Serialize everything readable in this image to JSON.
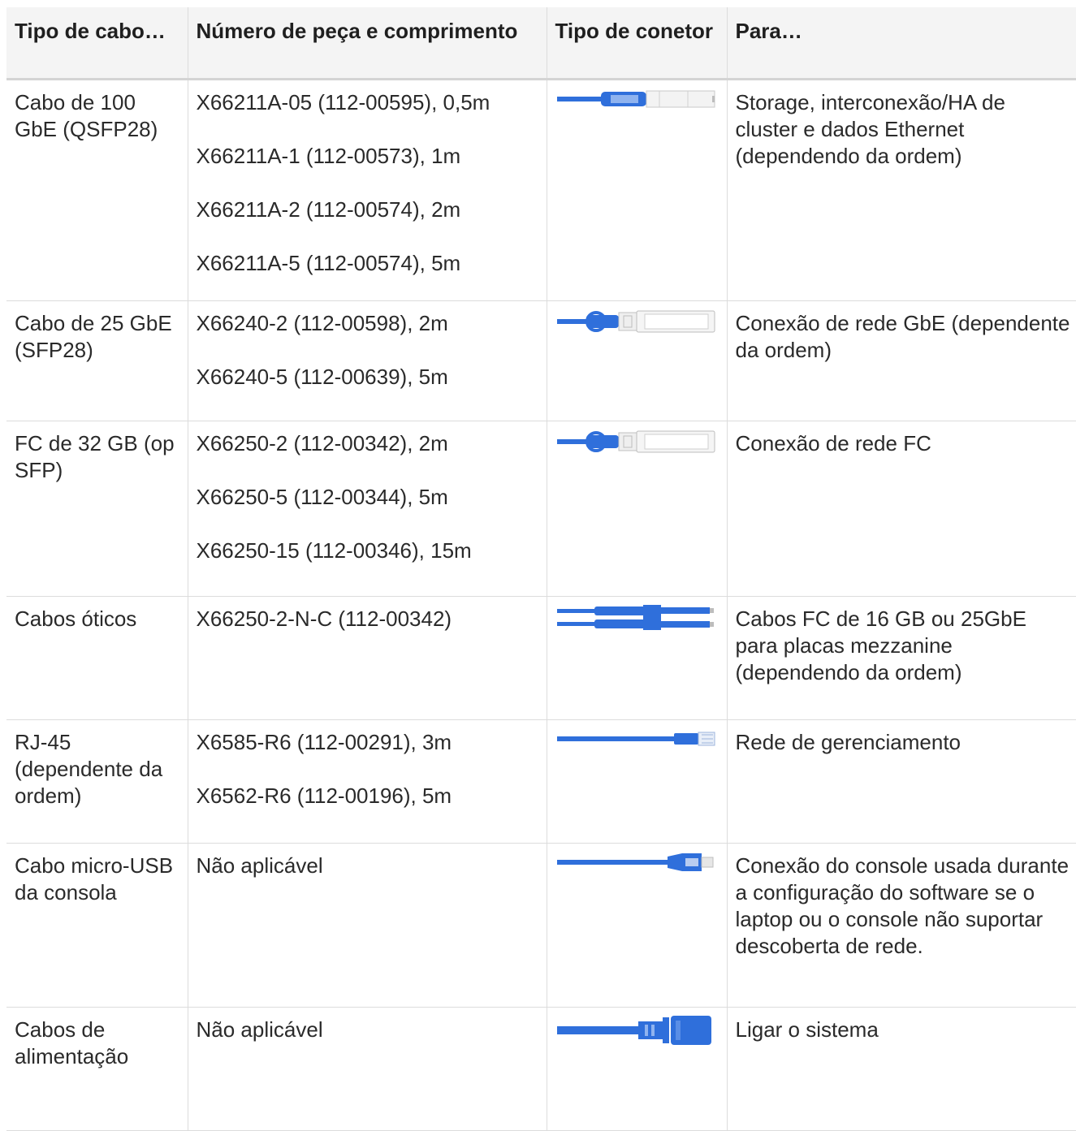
{
  "table": {
    "headers": [
      "Tipo de cabo…",
      "Número de peça e comprimento",
      "Tipo de conetor",
      "Para…"
    ],
    "rows": [
      {
        "type": "Cabo de 100 GbE (QSFP28)",
        "parts": [
          "X66211A-05 (112-00595), 0,5m",
          "X66211A-1 (112-00573), 1m",
          "X66211A-2 (112-00574), 2m",
          "X66211A-5 (112-00574), 5m"
        ],
        "connector_icon": "qsfp28-connector-icon",
        "purpose": "Storage, interconexão/HA de cluster e dados Ethernet (dependendo da ordem)"
      },
      {
        "type": "Cabo de 25 GbE (SFP28)",
        "parts": [
          "X66240-2 (112-00598), 2m",
          "X66240-5 (112-00639), 5m"
        ],
        "connector_icon": "sfp28-connector-icon",
        "purpose": "Conexão de rede GbE (dependente da ordem)"
      },
      {
        "type": "FC de 32 GB (op SFP)",
        "parts": [
          "X66250-2 (112-00342), 2m",
          "X66250-5 (112-00344), 5m",
          "X66250-15 (112-00346), 15m"
        ],
        "connector_icon": "sfp-fc-connector-icon",
        "purpose": "Conexão de rede FC"
      },
      {
        "type": "Cabos óticos",
        "parts": [
          "X66250-2-N-C (112-00342)"
        ],
        "connector_icon": "optical-lc-connector-icon",
        "purpose": "Cabos FC de 16 GB ou 25GbE para placas mezzanine (dependendo da ordem)"
      },
      {
        "type": "RJ-45 (dependente da ordem)",
        "parts": [
          "X6585-R6 (112-00291), 3m",
          "X6562-R6 (112-00196), 5m"
        ],
        "connector_icon": "rj45-connector-icon",
        "purpose": "Rede de gerenciamento"
      },
      {
        "type": "Cabo micro-USB da consola",
        "parts": [
          "Não aplicável"
        ],
        "connector_icon": "micro-usb-connector-icon",
        "purpose": "Conexão do console usada durante a configuração do software se o laptop ou o console não suportar descoberta de rede."
      },
      {
        "type": "Cabos de alimentação",
        "parts": [
          "Não aplicável"
        ],
        "connector_icon": "power-connector-icon",
        "purpose": "Ligar o sistema"
      }
    ]
  },
  "colors": {
    "cable_blue": "#2f6fdb",
    "header_bg": "#f4f4f4",
    "border": "#dcdcdc"
  }
}
